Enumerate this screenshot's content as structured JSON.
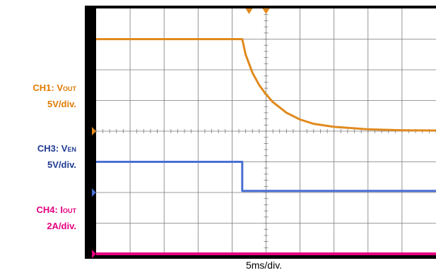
{
  "chart_data": {
    "type": "line",
    "title": "",
    "xlabel": "5ms/div.",
    "grid": true,
    "divisions": {
      "x": 10,
      "y": 8
    },
    "time_per_div_ms": 5,
    "x_range_ms": [
      0,
      50
    ],
    "trigger_time_ms": 22.5,
    "channels": [
      {
        "id": "ch1",
        "name_main": "CH1: V",
        "name_sub": "OUT",
        "scale": "5V/div.",
        "color": "#e08a1e",
        "ground_div": 4,
        "points": [
          [
            0,
            3.0
          ],
          [
            21.5,
            3.0
          ],
          [
            22.0,
            2.5
          ],
          [
            23.0,
            1.9
          ],
          [
            24.0,
            1.5
          ],
          [
            25.0,
            1.2
          ],
          [
            26.0,
            0.95
          ],
          [
            28.0,
            0.6
          ],
          [
            30.0,
            0.38
          ],
          [
            32.0,
            0.24
          ],
          [
            35.0,
            0.14
          ],
          [
            40.0,
            0.06
          ],
          [
            45.0,
            0.03
          ],
          [
            50.0,
            0.02
          ]
        ]
      },
      {
        "id": "ch3",
        "name_main": "CH3: V",
        "name_sub": "EN",
        "scale": "5V/div.",
        "color": "#4a6fd4",
        "ground_div": 2,
        "points": [
          [
            0,
            1.0
          ],
          [
            21.5,
            1.0
          ],
          [
            21.5,
            0.05
          ],
          [
            50.0,
            0.05
          ]
        ]
      },
      {
        "id": "ch4",
        "name_main": "CH4: I",
        "name_sub": "OUT",
        "scale": "2A/div.",
        "color": "#e4007f",
        "ground_div": 0,
        "points": [
          [
            0,
            0.0
          ],
          [
            50.0,
            0.0
          ]
        ]
      }
    ]
  }
}
